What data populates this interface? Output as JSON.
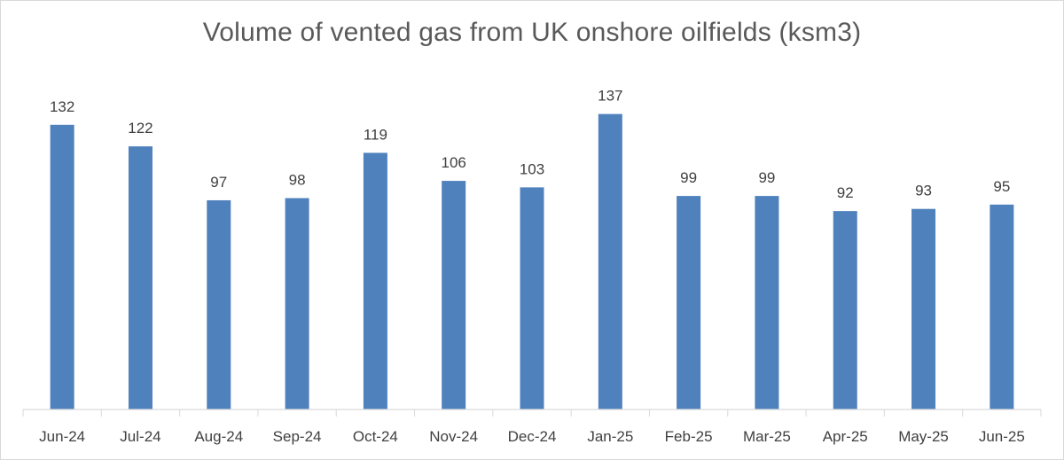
{
  "chart_data": {
    "type": "bar",
    "title": "Volume of vented gas from UK onshore oilfields (ksm3)",
    "xlabel": "",
    "ylabel": "",
    "categories": [
      "Jun-24",
      "Jul-24",
      "Aug-24",
      "Sep-24",
      "Oct-24",
      "Nov-24",
      "Dec-24",
      "Jan-25",
      "Feb-25",
      "Mar-25",
      "Apr-25",
      "May-25",
      "Jun-25"
    ],
    "values": [
      132,
      122,
      97,
      98,
      119,
      106,
      103,
      137,
      99,
      99,
      92,
      93,
      95
    ],
    "ylim": [
      0,
      150
    ],
    "grid": false,
    "legend": "none",
    "data_labels": true,
    "colors": {
      "bar": "#4f81bd",
      "axis": "#d9d9d9",
      "text": "#404040",
      "title": "#595959"
    }
  }
}
